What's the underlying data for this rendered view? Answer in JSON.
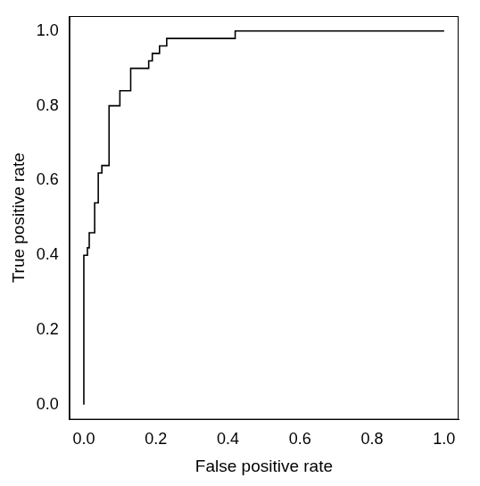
{
  "chart_data": {
    "type": "line",
    "x_label": "False positive rate",
    "y_label": "True positive rate",
    "x": [
      0,
      0,
      0.01,
      0.01,
      0.015,
      0.015,
      0.03,
      0.03,
      0.04,
      0.04,
      0.05,
      0.05,
      0.07,
      0.07,
      0.1,
      0.1,
      0.13,
      0.13,
      0.18,
      0.18,
      0.19,
      0.19,
      0.21,
      0.21,
      0.23,
      0.23,
      0.26,
      0.42,
      0.42,
      1.0
    ],
    "values": [
      0,
      0.4,
      0.4,
      0.42,
      0.42,
      0.46,
      0.46,
      0.54,
      0.54,
      0.62,
      0.62,
      0.64,
      0.64,
      0.8,
      0.8,
      0.84,
      0.84,
      0.9,
      0.9,
      0.92,
      0.92,
      0.94,
      0.94,
      0.96,
      0.96,
      0.98,
      0.98,
      0.98,
      1.0,
      1.0
    ],
    "color": "#000000",
    "xlim": [
      -0.04,
      1.04
    ],
    "ylim": [
      -0.04,
      1.04
    ],
    "xticks": [
      {
        "value": 0,
        "label": "0.0"
      },
      0.2,
      0.4,
      0.6,
      0.8,
      {
        "value": 1,
        "label": "1.0"
      }
    ],
    "yticks": [
      {
        "value": 0,
        "label": "0.0"
      },
      0.2,
      0.4,
      0.6,
      0.8,
      {
        "value": 1,
        "label": "1.0"
      }
    ],
    "grid": false
  }
}
